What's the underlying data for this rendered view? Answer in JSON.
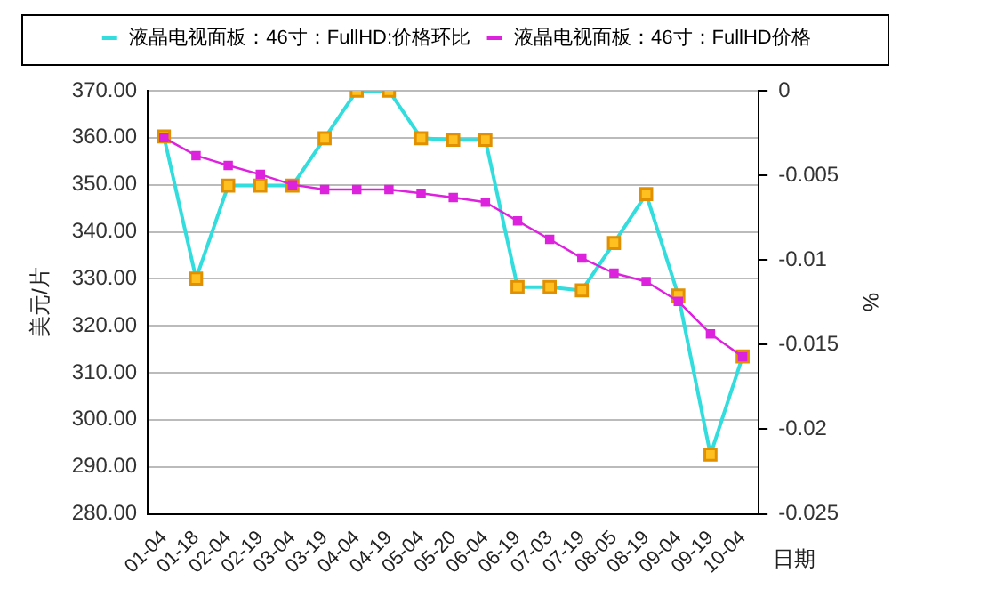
{
  "chart_data": {
    "type": "line",
    "ylabel": "美元/片",
    "y2label": "%",
    "xlabel": "日期",
    "categories": [
      "01-04",
      "01-18",
      "02-04",
      "02-19",
      "03-04",
      "03-19",
      "04-04",
      "04-19",
      "05-04",
      "05-20",
      "06-04",
      "06-19",
      "07-03",
      "07-19",
      "08-05",
      "08-19",
      "09-04",
      "09-19",
      "10-04"
    ],
    "series": [
      {
        "name": "液晶电视面板：46寸：FullHD:价格环比",
        "color": "#33dddd",
        "axis": "y2",
        "marker": "square",
        "values": [
          -0.0027,
          -0.0111,
          -0.0056,
          -0.0056,
          -0.0056,
          -0.0028,
          0,
          0,
          -0.0028,
          -0.0029,
          -0.0029,
          -0.0116,
          -0.0116,
          -0.0118,
          -0.009,
          -0.0061,
          -0.0121,
          -0.0215,
          -0.0157
        ]
      },
      {
        "name": "液晶电视面板：46寸：FullHD价格",
        "color": "#dd22dd",
        "marker": "square",
        "values": [
          360,
          356.2,
          354.1,
          352.2,
          350,
          349,
          349,
          349,
          348.2,
          347.3,
          346.3,
          342.3,
          338.4,
          334.4,
          331.2,
          329.4,
          325.2,
          318.3,
          313.4
        ]
      }
    ],
    "ylim": [
      280,
      370
    ],
    "yticks": [
      {
        "value": 280,
        "label": "280.00"
      },
      {
        "value": 290,
        "label": "290.00"
      },
      {
        "value": 300,
        "label": "300.00"
      },
      {
        "value": 310,
        "label": "310.00"
      },
      {
        "value": 320,
        "label": "320.00"
      },
      {
        "value": 330,
        "label": "330.00"
      },
      {
        "value": 340,
        "label": "340.00"
      },
      {
        "value": 350,
        "label": "350.00"
      },
      {
        "value": 360,
        "label": "360.00"
      },
      {
        "value": 370,
        "label": "370.00"
      }
    ],
    "y2lim": [
      -0.025,
      0
    ],
    "y2ticks": [
      -0.025,
      -0.02,
      -0.015,
      -0.01,
      -0.005,
      0
    ],
    "grid": "y",
    "legend": "top"
  }
}
